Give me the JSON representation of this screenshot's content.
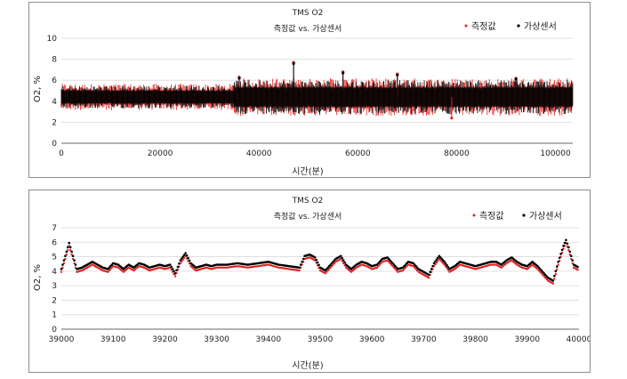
{
  "chart_data": [
    {
      "type": "scatter",
      "title": "TMS O2",
      "subtitle": "측정값 vs. 가상센서",
      "xlabel": "시간(분)",
      "ylabel": "O2, %",
      "xlim": [
        0,
        103500
      ],
      "ylim": [
        0,
        10
      ],
      "xticks": [
        0,
        20000,
        40000,
        60000,
        80000,
        100000
      ],
      "yticks": [
        0,
        2,
        4,
        6,
        8,
        10
      ],
      "grid": true,
      "legend_position": "top-right",
      "series": [
        {
          "name": "측정값",
          "color": "#e02020",
          "segments": [
            {
              "x_start": 0,
              "x_end": 35000,
              "mean": 4.4,
              "band_low": 3.7,
              "band_high": 5.1
            },
            {
              "x_start": 35000,
              "x_end": 103500,
              "mean": 4.4,
              "band_low": 3.4,
              "band_high": 5.4
            }
          ],
          "spikes": [
            [
              36000,
              6.3
            ],
            [
              47000,
              7.7
            ],
            [
              57000,
              6.8
            ],
            [
              68000,
              6.6
            ],
            [
              79000,
              2.4
            ],
            [
              92000,
              6.2
            ]
          ]
        },
        {
          "name": "가상센서",
          "color": "#000000",
          "segments": [
            {
              "x_start": 0,
              "x_end": 35000,
              "mean": 4.4,
              "band_low": 3.8,
              "band_high": 5.0
            },
            {
              "x_start": 35000,
              "x_end": 103500,
              "mean": 4.4,
              "band_low": 3.5,
              "band_high": 5.3
            }
          ],
          "spikes": [
            [
              36000,
              6.2
            ],
            [
              47000,
              7.6
            ],
            [
              57000,
              6.7
            ],
            [
              68000,
              6.5
            ],
            [
              92000,
              6.1
            ]
          ]
        }
      ]
    },
    {
      "type": "scatter",
      "title": "TMS O2",
      "subtitle": "측정값 vs. 가상센서",
      "xlabel": "시간(분)",
      "ylabel": "O2, %",
      "xlim": [
        39000,
        40000
      ],
      "ylim": [
        0,
        7
      ],
      "xticks": [
        39000,
        39100,
        39200,
        39300,
        39400,
        39500,
        39600,
        39700,
        39800,
        39900,
        40000
      ],
      "yticks": [
        0,
        1,
        2,
        3,
        4,
        5,
        6,
        7
      ],
      "grid": true,
      "legend_position": "top-right",
      "series": [
        {
          "name": "측정값",
          "color": "#e02020",
          "x": [
            39000,
            39010,
            39015,
            39020,
            39030,
            39040,
            39050,
            39060,
            39070,
            39080,
            39090,
            39100,
            39110,
            39120,
            39130,
            39140,
            39150,
            39160,
            39170,
            39180,
            39190,
            39200,
            39210,
            39220,
            39230,
            39240,
            39250,
            39260,
            39270,
            39280,
            39290,
            39300,
            39320,
            39340,
            39360,
            39380,
            39400,
            39420,
            39440,
            39460,
            39470,
            39480,
            39490,
            39500,
            39510,
            39520,
            39530,
            39540,
            39550,
            39560,
            39570,
            39580,
            39590,
            39600,
            39610,
            39620,
            39630,
            39640,
            39650,
            39660,
            39670,
            39680,
            39690,
            39700,
            39710,
            39720,
            39730,
            39740,
            39750,
            39760,
            39770,
            39780,
            39790,
            39800,
            39810,
            39820,
            39830,
            39840,
            39850,
            39860,
            39870,
            39880,
            39890,
            39900,
            39910,
            39920,
            39930,
            39940,
            39950,
            39960,
            39970,
            39975,
            39980,
            39990,
            40000
          ],
          "y": [
            4.0,
            5.2,
            5.8,
            5.2,
            4.0,
            4.1,
            4.3,
            4.5,
            4.3,
            4.1,
            4.0,
            4.4,
            4.3,
            4.0,
            4.3,
            4.1,
            4.4,
            4.3,
            4.1,
            4.2,
            4.3,
            4.2,
            4.3,
            3.7,
            4.6,
            5.1,
            4.4,
            4.1,
            4.2,
            4.3,
            4.2,
            4.3,
            4.3,
            4.4,
            4.3,
            4.4,
            4.5,
            4.3,
            4.2,
            4.1,
            4.9,
            5.0,
            4.8,
            4.1,
            3.9,
            4.3,
            4.7,
            4.9,
            4.3,
            4.0,
            4.3,
            4.5,
            4.4,
            4.2,
            4.3,
            4.7,
            4.8,
            4.4,
            4.0,
            4.1,
            4.5,
            4.4,
            4.0,
            3.8,
            3.6,
            4.4,
            4.9,
            4.5,
            4.0,
            4.2,
            4.5,
            4.4,
            4.3,
            4.2,
            4.3,
            4.4,
            4.5,
            4.5,
            4.3,
            4.6,
            4.8,
            4.5,
            4.3,
            4.2,
            4.5,
            4.2,
            3.8,
            3.4,
            3.2,
            4.5,
            5.6,
            6.0,
            5.5,
            4.3,
            4.1
          ]
        },
        {
          "name": "가상센서",
          "color": "#000000",
          "x": [
            39000,
            39010,
            39015,
            39020,
            39030,
            39040,
            39050,
            39060,
            39070,
            39080,
            39090,
            39100,
            39110,
            39120,
            39130,
            39140,
            39150,
            39160,
            39170,
            39180,
            39190,
            39200,
            39210,
            39220,
            39230,
            39240,
            39250,
            39260,
            39270,
            39280,
            39290,
            39300,
            39320,
            39340,
            39360,
            39380,
            39400,
            39420,
            39440,
            39460,
            39470,
            39480,
            39490,
            39500,
            39510,
            39520,
            39530,
            39540,
            39550,
            39560,
            39570,
            39580,
            39590,
            39600,
            39610,
            39620,
            39630,
            39640,
            39650,
            39660,
            39670,
            39680,
            39690,
            39700,
            39710,
            39720,
            39730,
            39740,
            39750,
            39760,
            39770,
            39780,
            39790,
            39800,
            39810,
            39820,
            39830,
            39840,
            39850,
            39860,
            39870,
            39880,
            39890,
            39900,
            39910,
            39920,
            39930,
            39940,
            39950,
            39960,
            39970,
            39975,
            39980,
            39990,
            40000
          ],
          "y": [
            4.1,
            5.3,
            5.9,
            5.3,
            4.1,
            4.2,
            4.4,
            4.6,
            4.4,
            4.2,
            4.1,
            4.5,
            4.4,
            4.1,
            4.4,
            4.2,
            4.5,
            4.4,
            4.2,
            4.3,
            4.4,
            4.3,
            4.4,
            3.8,
            4.7,
            5.2,
            4.5,
            4.2,
            4.3,
            4.4,
            4.3,
            4.4,
            4.4,
            4.5,
            4.4,
            4.5,
            4.6,
            4.4,
            4.3,
            4.2,
            5.0,
            5.1,
            4.9,
            4.2,
            4.0,
            4.4,
            4.8,
            5.0,
            4.4,
            4.1,
            4.4,
            4.6,
            4.5,
            4.3,
            4.4,
            4.8,
            4.9,
            4.5,
            4.1,
            4.2,
            4.6,
            4.5,
            4.1,
            3.9,
            3.7,
            4.5,
            5.0,
            4.6,
            4.1,
            4.3,
            4.6,
            4.5,
            4.4,
            4.3,
            4.4,
            4.5,
            4.6,
            4.6,
            4.4,
            4.7,
            4.9,
            4.6,
            4.4,
            4.3,
            4.6,
            4.3,
            3.9,
            3.5,
            3.3,
            4.6,
            5.7,
            6.1,
            5.6,
            4.4,
            4.2
          ]
        }
      ]
    }
  ]
}
